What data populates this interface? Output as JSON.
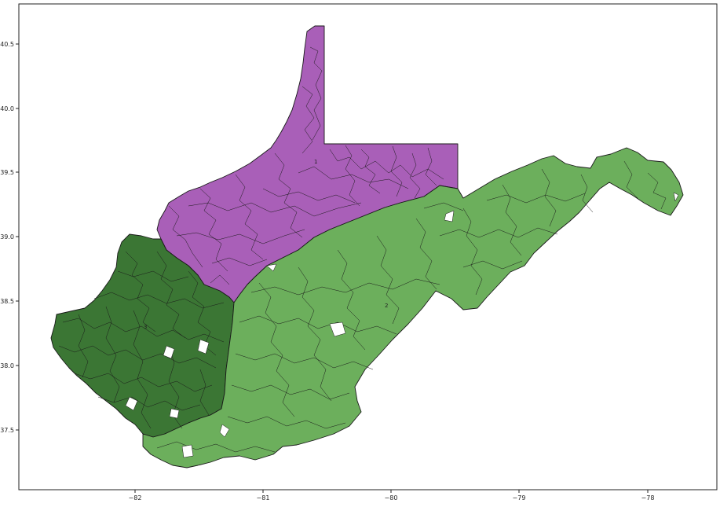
{
  "map": {
    "x_ticks": [
      {
        "value": -82,
        "label": "−82"
      },
      {
        "value": -81,
        "label": "−81"
      },
      {
        "value": -80,
        "label": "−80"
      },
      {
        "value": -79,
        "label": "−79"
      },
      {
        "value": -78,
        "label": "−78"
      }
    ],
    "y_ticks": [
      {
        "value": 40.5,
        "label": "40.5"
      },
      {
        "value": 40.0,
        "label": "40.0"
      },
      {
        "value": 39.5,
        "label": "39.5"
      },
      {
        "value": 39.0,
        "label": "39.0"
      },
      {
        "value": 38.5,
        "label": "38.5"
      },
      {
        "value": 38.0,
        "label": "38.0"
      },
      {
        "value": 37.5,
        "label": "37.5"
      }
    ],
    "districts": [
      {
        "id": "1",
        "label": "1",
        "color": "#a95fb8"
      },
      {
        "id": "2",
        "label": "2",
        "color": "#6caf5c"
      },
      {
        "id": "3",
        "label": "3",
        "color": "#3b7634"
      }
    ]
  }
}
